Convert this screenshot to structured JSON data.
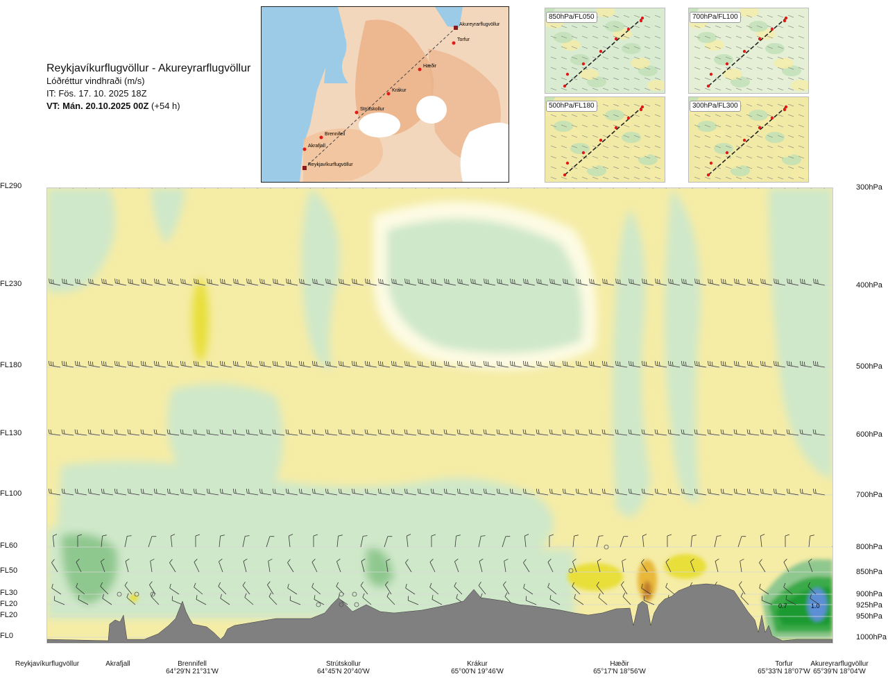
{
  "header": {
    "route_title": "Reykjavíkurflugvöllur - Akureyrarflugvöllur",
    "parameter": "Lóðréttur vindhraði (m/s)",
    "issue_time": "IT: Fös. 17. 10. 2025 18Z",
    "valid_time_bold": "VT: Mán. 20.10.2025 00Z",
    "valid_time_offset": "(+54 h)"
  },
  "route_map": {
    "waypoints": [
      "Akureyrarflugvöllur",
      "Torfur",
      "Hæðir",
      "Krákur",
      "Strútskollur",
      "Brennifell",
      "Akrafjall",
      "Reykjavíkurflugvöllur"
    ]
  },
  "mini_maps": [
    {
      "label": "850hPa/FL050"
    },
    {
      "label": "700hPa/FL100"
    },
    {
      "label": "500hPa/FL180"
    },
    {
      "label": "300hPa/FL300"
    }
  ],
  "flight_levels": [
    "FL290",
    "FL230",
    "FL180",
    "FL130",
    "FL100",
    "FL60",
    "FL50",
    "FL30",
    "FL20",
    "FL20",
    "FL0"
  ],
  "pressure_levels": [
    "300hPa",
    "400hPa",
    "500hPa",
    "600hPa",
    "700hPa",
    "800hPa",
    "850hPa",
    "900hPa",
    "925hPa",
    "950hPa",
    "1000hPa"
  ],
  "contour_values": [
    "0.7",
    "1.0"
  ],
  "bottom_points": [
    {
      "name": "Reykjavíkurflugvöllur",
      "coord": ""
    },
    {
      "name": "Akrafjall",
      "coord": ""
    },
    {
      "name": "Brennifell",
      "coord": "64°29'N 21°31'W"
    },
    {
      "name": "Strútskollur",
      "coord": "64°45'N 20°40'W"
    },
    {
      "name": "Krákur",
      "coord": "65°00'N 19°46'W"
    },
    {
      "name": "Hæðir",
      "coord": "65°17'N 18°56'W"
    },
    {
      "name": "Torfur",
      "coord": "65°33'N 18°07'W"
    },
    {
      "name": "Akureyrarflugvöllur",
      "coord": "65°39'N 18°04'W"
    }
  ],
  "colors": {
    "strong_up": "#e8df3a",
    "weak_up": "#f5eca6",
    "neutral": "#fdfbe3",
    "weak_down": "#cfe8c9",
    "strong_down": "#8fc88f",
    "very_strong_down": "#1e9a32",
    "extreme": "#5b8fd6",
    "terrain": "#808080",
    "water": "#9ccbe8",
    "land": "#f2c6a0"
  }
}
